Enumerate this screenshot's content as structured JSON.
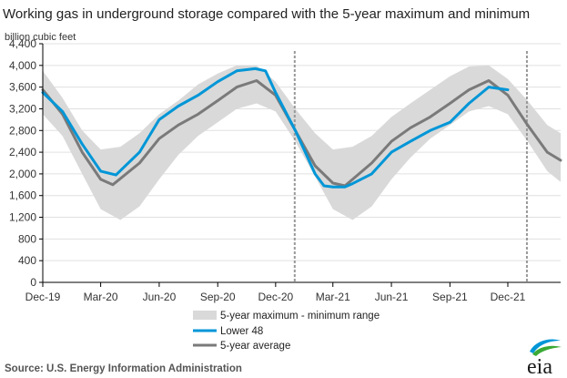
{
  "chart_data": {
    "type": "line",
    "title": "Working gas in underground  storage compared with the 5-year maximum and minimum",
    "unit_label": "billion cubic feet",
    "ylim": [
      0,
      4400
    ],
    "yticks": [
      0,
      400,
      800,
      1200,
      1600,
      2000,
      2400,
      2800,
      3200,
      3600,
      4000,
      4400
    ],
    "ytick_labels": [
      "0",
      "400",
      "800",
      "1,200",
      "1,600",
      "2,000",
      "2,400",
      "2,800",
      "3,200",
      "3,600",
      "4,000",
      "4,400"
    ],
    "xlim": [
      "2019-12-01",
      "2022-02-22"
    ],
    "xticks": [
      "2019-12-01",
      "2020-03-01",
      "2020-06-01",
      "2020-09-01",
      "2020-12-01",
      "2021-03-01",
      "2021-06-01",
      "2021-09-01",
      "2021-12-01"
    ],
    "xtick_labels": [
      "Dec-19",
      "Mar-20",
      "Jun-20",
      "Sep-20",
      "Dec-20",
      "Mar-21",
      "Jun-21",
      "Sep-21",
      "Dec-21"
    ],
    "grid": "horizontal",
    "legend_position": "bottom-center",
    "vertical_markers": [
      "2020-12-31",
      "2021-12-31"
    ],
    "series": [
      {
        "name": "5-year maximum - minimum range",
        "kind": "band",
        "color": "#d9d9d9",
        "x": [
          "2019-12-01",
          "2020-01-01",
          "2020-02-01",
          "2020-03-01",
          "2020-04-01",
          "2020-05-01",
          "2020-06-01",
          "2020-07-01",
          "2020-08-01",
          "2020-09-01",
          "2020-10-01",
          "2020-11-01",
          "2020-12-01",
          "2021-01-01",
          "2021-02-01",
          "2021-03-01",
          "2021-04-01",
          "2021-05-01",
          "2021-06-01",
          "2021-07-01",
          "2021-08-01",
          "2021-09-01",
          "2021-10-01",
          "2021-11-01",
          "2021-12-01",
          "2022-01-01",
          "2022-02-01",
          "2022-02-22"
        ],
        "upper": [
          3900,
          3400,
          2800,
          2450,
          2500,
          2750,
          3100,
          3350,
          3650,
          3850,
          4000,
          4000,
          3700,
          3200,
          2750,
          2450,
          2500,
          2700,
          3050,
          3300,
          3550,
          3800,
          3980,
          4000,
          3750,
          3350,
          2900,
          2750
        ],
        "lower": [
          3100,
          2700,
          2000,
          1350,
          1150,
          1400,
          1900,
          2350,
          2700,
          2950,
          3200,
          3300,
          3150,
          2600,
          1950,
          1350,
          1150,
          1400,
          1900,
          2300,
          2650,
          2900,
          3150,
          3250,
          3100,
          2600,
          2050,
          1850
        ]
      },
      {
        "name": "Lower 48",
        "kind": "line",
        "color": "#0096d7",
        "x": [
          "2019-12-01",
          "2020-01-01",
          "2020-02-01",
          "2020-03-01",
          "2020-03-25",
          "2020-05-01",
          "2020-06-01",
          "2020-07-01",
          "2020-08-01",
          "2020-09-01",
          "2020-10-01",
          "2020-10-30",
          "2020-11-15",
          "2020-12-01",
          "2021-01-01",
          "2021-02-01",
          "2021-02-15",
          "2021-03-01",
          "2021-03-20",
          "2021-04-01",
          "2021-05-01",
          "2021-06-01",
          "2021-07-01",
          "2021-08-01",
          "2021-09-01",
          "2021-10-01",
          "2021-11-01",
          "2021-12-01"
        ],
        "values": [
          3500,
          3150,
          2550,
          2050,
          1980,
          2400,
          3000,
          3250,
          3450,
          3700,
          3900,
          3940,
          3900,
          3500,
          2800,
          2000,
          1780,
          1760,
          1760,
          1820,
          2000,
          2400,
          2600,
          2800,
          2950,
          3300,
          3600,
          3550
        ]
      },
      {
        "name": "5-year average",
        "kind": "line",
        "color": "#7a7a7a",
        "x": [
          "2019-12-01",
          "2020-01-01",
          "2020-02-01",
          "2020-03-01",
          "2020-03-20",
          "2020-05-01",
          "2020-06-01",
          "2020-07-01",
          "2020-08-01",
          "2020-09-01",
          "2020-10-01",
          "2020-11-01",
          "2020-12-01",
          "2021-01-01",
          "2021-02-01",
          "2021-03-01",
          "2021-03-20",
          "2021-05-01",
          "2021-06-01",
          "2021-07-01",
          "2021-08-01",
          "2021-09-01",
          "2021-10-01",
          "2021-11-01",
          "2021-12-01",
          "2022-01-01",
          "2022-02-01",
          "2022-02-22"
        ],
        "values": [
          3550,
          3100,
          2400,
          1900,
          1800,
          2200,
          2650,
          2900,
          3100,
          3350,
          3600,
          3720,
          3450,
          2800,
          2150,
          1830,
          1780,
          2200,
          2600,
          2850,
          3050,
          3300,
          3550,
          3720,
          3450,
          2900,
          2400,
          2250
        ]
      }
    ]
  },
  "source": "Source:  U.S. Energy Information Administration",
  "logo_text": "eia",
  "colors": {
    "axis": "#000000",
    "grid": "#e0e0e0",
    "marker": "#999999",
    "logo_blue": "#0096d7",
    "logo_green": "#3aaa35"
  }
}
